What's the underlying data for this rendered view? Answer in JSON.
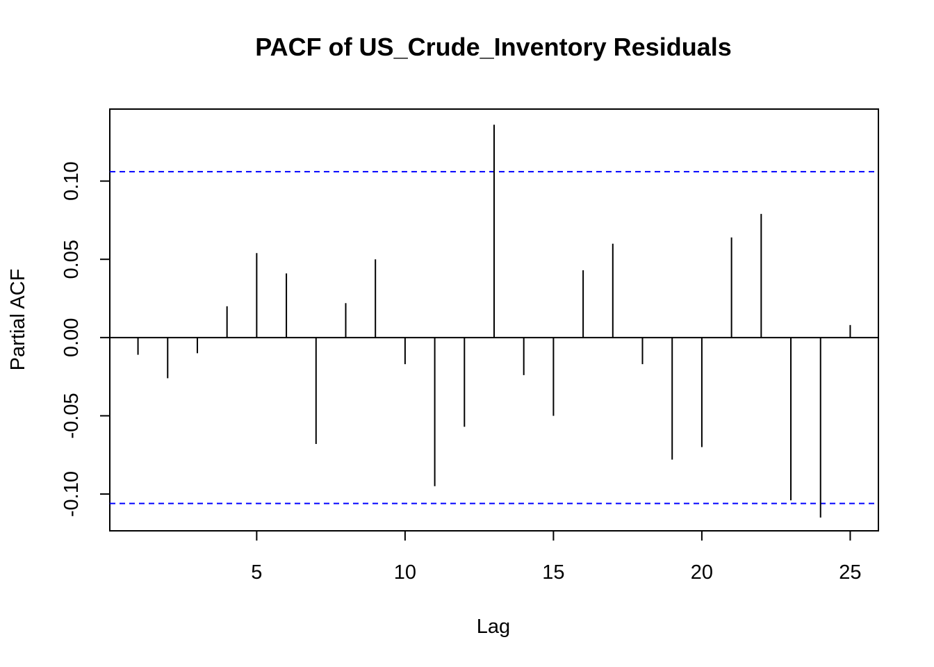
{
  "chart_data": {
    "type": "bar",
    "subtype": "pacf-spike",
    "title": "PACF of US_Crude_Inventory Residuals",
    "xlabel": "Lag",
    "ylabel": "Partial ACF",
    "xlim": [
      0.05,
      25.95
    ],
    "ylim": [
      -0.1235,
      0.146
    ],
    "x_ticks": [
      5,
      10,
      15,
      20,
      25
    ],
    "y_ticks": [
      -0.1,
      -0.05,
      0.0,
      0.05,
      0.1
    ],
    "y_tick_labels": [
      "-0.10",
      "-0.05",
      "0.00",
      "0.05",
      "0.10"
    ],
    "lags": [
      1,
      2,
      3,
      4,
      5,
      6,
      7,
      8,
      9,
      10,
      11,
      12,
      13,
      14,
      15,
      16,
      17,
      18,
      19,
      20,
      21,
      22,
      23,
      24,
      25
    ],
    "values": [
      -0.011,
      -0.026,
      -0.01,
      0.02,
      0.054,
      0.041,
      -0.068,
      0.022,
      0.05,
      -0.017,
      -0.095,
      -0.057,
      0.136,
      -0.024,
      -0.05,
      0.043,
      0.06,
      -0.017,
      -0.078,
      -0.07,
      0.064,
      0.079,
      -0.104,
      -0.115,
      0.008
    ],
    "confidence_bound": 0.106,
    "ci_color": "#0000ff",
    "spike_color": "#000000",
    "grid": false,
    "legend": "none"
  }
}
